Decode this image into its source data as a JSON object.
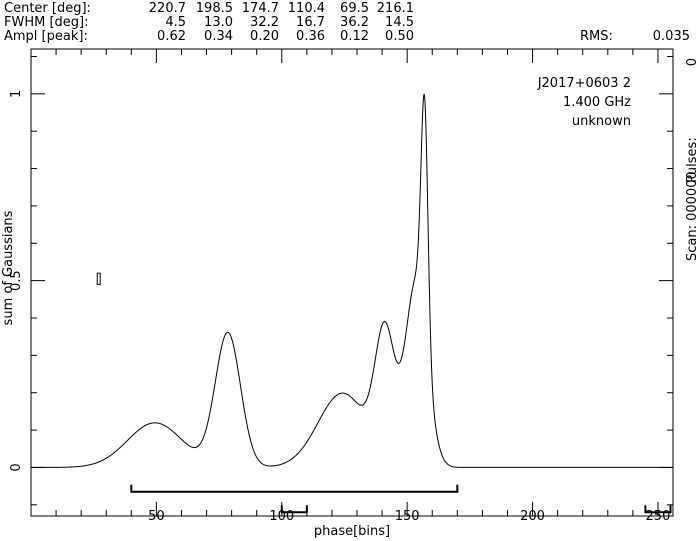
{
  "header": {
    "center_label": "Center [deg]:",
    "fwhm_label": "FWHM  [deg]:",
    "ampl_label": "Ampl  [peak]:",
    "center_values": [
      "220.7",
      "198.5",
      "174.7",
      "110.4",
      "69.5",
      "216.1"
    ],
    "fwhm_values": [
      "4.5",
      "13.0",
      "32.2",
      "16.7",
      "36.2",
      "14.5"
    ],
    "ampl_values": [
      "0.62",
      "0.34",
      "0.20",
      "0.36",
      "0.12",
      "0.50"
    ],
    "rms_label": "RMS:",
    "rms_value": "0.035"
  },
  "info": {
    "source": "J2017+0603 2",
    "frequency": "1.400 GHz",
    "backend": "unknown",
    "pulses_label": "Pulses:",
    "scan_label": "Scan: 000000",
    "right_zero": "0"
  },
  "chart_data": {
    "type": "line",
    "xlabel": "phase[bins]",
    "ylabel": "sum of Gaussians",
    "xlim": [
      0,
      256
    ],
    "ylim": [
      -0.13,
      1.12
    ],
    "x_ticks": [
      50,
      100,
      150,
      200,
      250
    ],
    "x_tick_labels": [
      "50",
      "100",
      "150",
      "200",
      "250"
    ],
    "y_ticks": [
      0,
      0.5,
      1
    ],
    "y_tick_labels": [
      "0",
      "0.5",
      "1"
    ],
    "grid": false,
    "components": [
      {
        "center_deg": 220.7,
        "fwhm_deg": 4.5,
        "ampl": 0.62
      },
      {
        "center_deg": 198.5,
        "fwhm_deg": 13.0,
        "ampl": 0.34
      },
      {
        "center_deg": 174.7,
        "fwhm_deg": 32.2,
        "ampl": 0.2
      },
      {
        "center_deg": 110.4,
        "fwhm_deg": 16.7,
        "ampl": 0.36
      },
      {
        "center_deg": 69.5,
        "fwhm_deg": 36.2,
        "ampl": 0.12
      },
      {
        "center_deg": 216.1,
        "fwhm_deg": 14.5,
        "ampl": 0.5
      }
    ],
    "error_bar": {
      "x": 27,
      "y_low": 0.49,
      "y_high": 0.52
    },
    "brackets": [
      {
        "x_start": 40,
        "x_end": 170,
        "y": -0.065
      },
      {
        "x_start": 100,
        "x_end": 110,
        "y": -0.12
      },
      {
        "x_start": 245,
        "x_end": 255,
        "y": -0.12
      }
    ]
  }
}
